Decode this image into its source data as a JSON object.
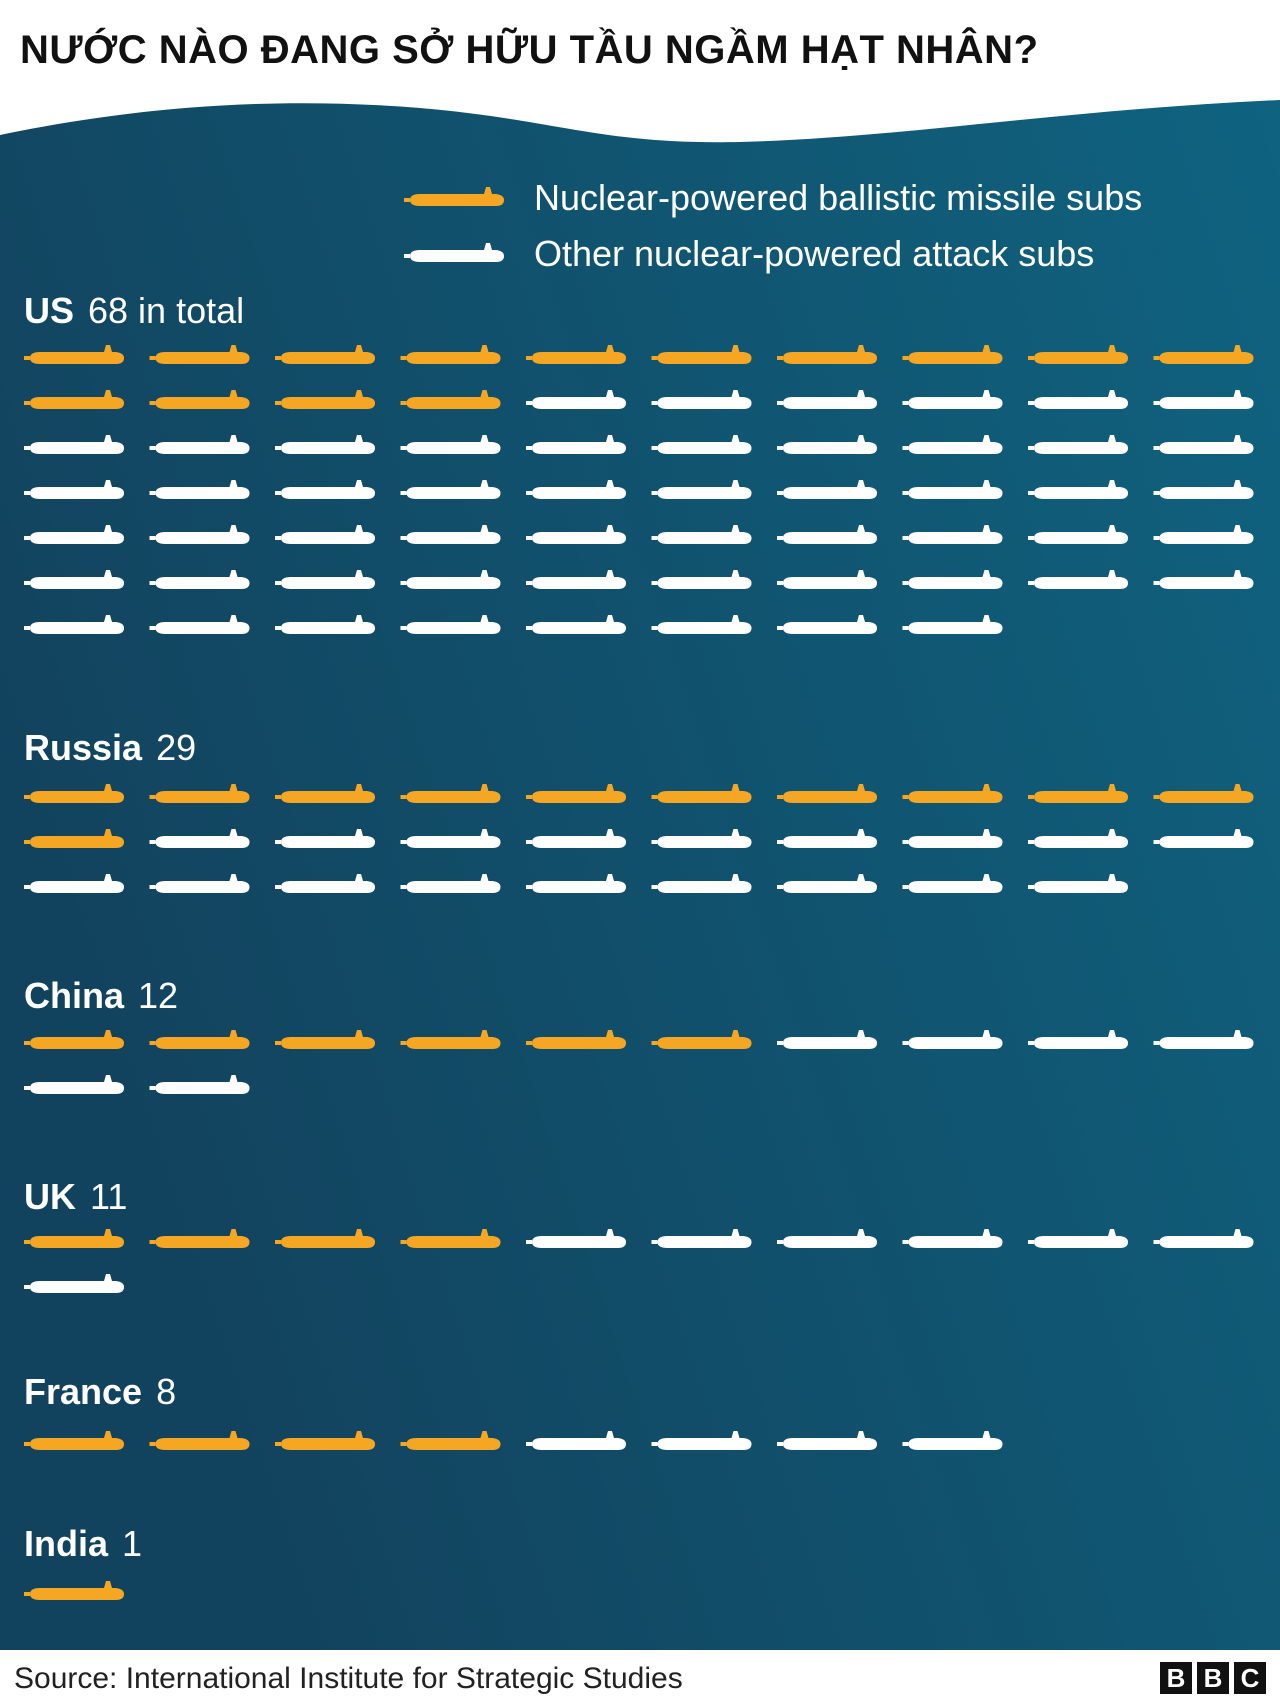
{
  "title": "NƯỚC NÀO ĐANG SỞ HỮU TẦU NGẦM HẠT NHÂN?",
  "colors": {
    "panel_left": "#12435e",
    "panel_right": "#0f6380",
    "ballistic": "#f5a623",
    "attack": "#ffffff",
    "title_text": "#111111"
  },
  "icons": {
    "ballistic": "submarine-icon",
    "attack": "submarine-icon"
  },
  "legend": {
    "items": [
      {
        "label": "Nuclear-powered ballistic missile subs",
        "series": "ballistic"
      },
      {
        "label": "Other nuclear-powered attack subs",
        "series": "attack"
      }
    ]
  },
  "countries": [
    {
      "name": "US",
      "count_label": "68 in total"
    },
    {
      "name": "Russia",
      "count_label": "29"
    },
    {
      "name": "China",
      "count_label": "12"
    },
    {
      "name": "UK",
      "count_label": "11"
    },
    {
      "name": "France",
      "count_label": "8"
    },
    {
      "name": "India",
      "count_label": "1"
    }
  ],
  "chart_data": {
    "type": "bar",
    "title": "NƯỚC NÀO ĐANG SỞ HỮU TẦU NGẦM HẠT NHÂN?",
    "categories": [
      "US",
      "Russia",
      "China",
      "UK",
      "France",
      "India"
    ],
    "series": [
      {
        "name": "Nuclear-powered ballistic missile subs",
        "values": [
          14,
          11,
          6,
          4,
          4,
          1
        ]
      },
      {
        "name": "Other nuclear-powered attack subs",
        "values": [
          54,
          18,
          6,
          7,
          4,
          0
        ]
      }
    ],
    "totals": [
      68,
      29,
      12,
      11,
      8,
      1
    ],
    "legend_position": "top-right"
  },
  "footer": {
    "source": "Source: International Institute for Strategic Studies",
    "logo_letters": [
      "B",
      "B",
      "C"
    ]
  }
}
